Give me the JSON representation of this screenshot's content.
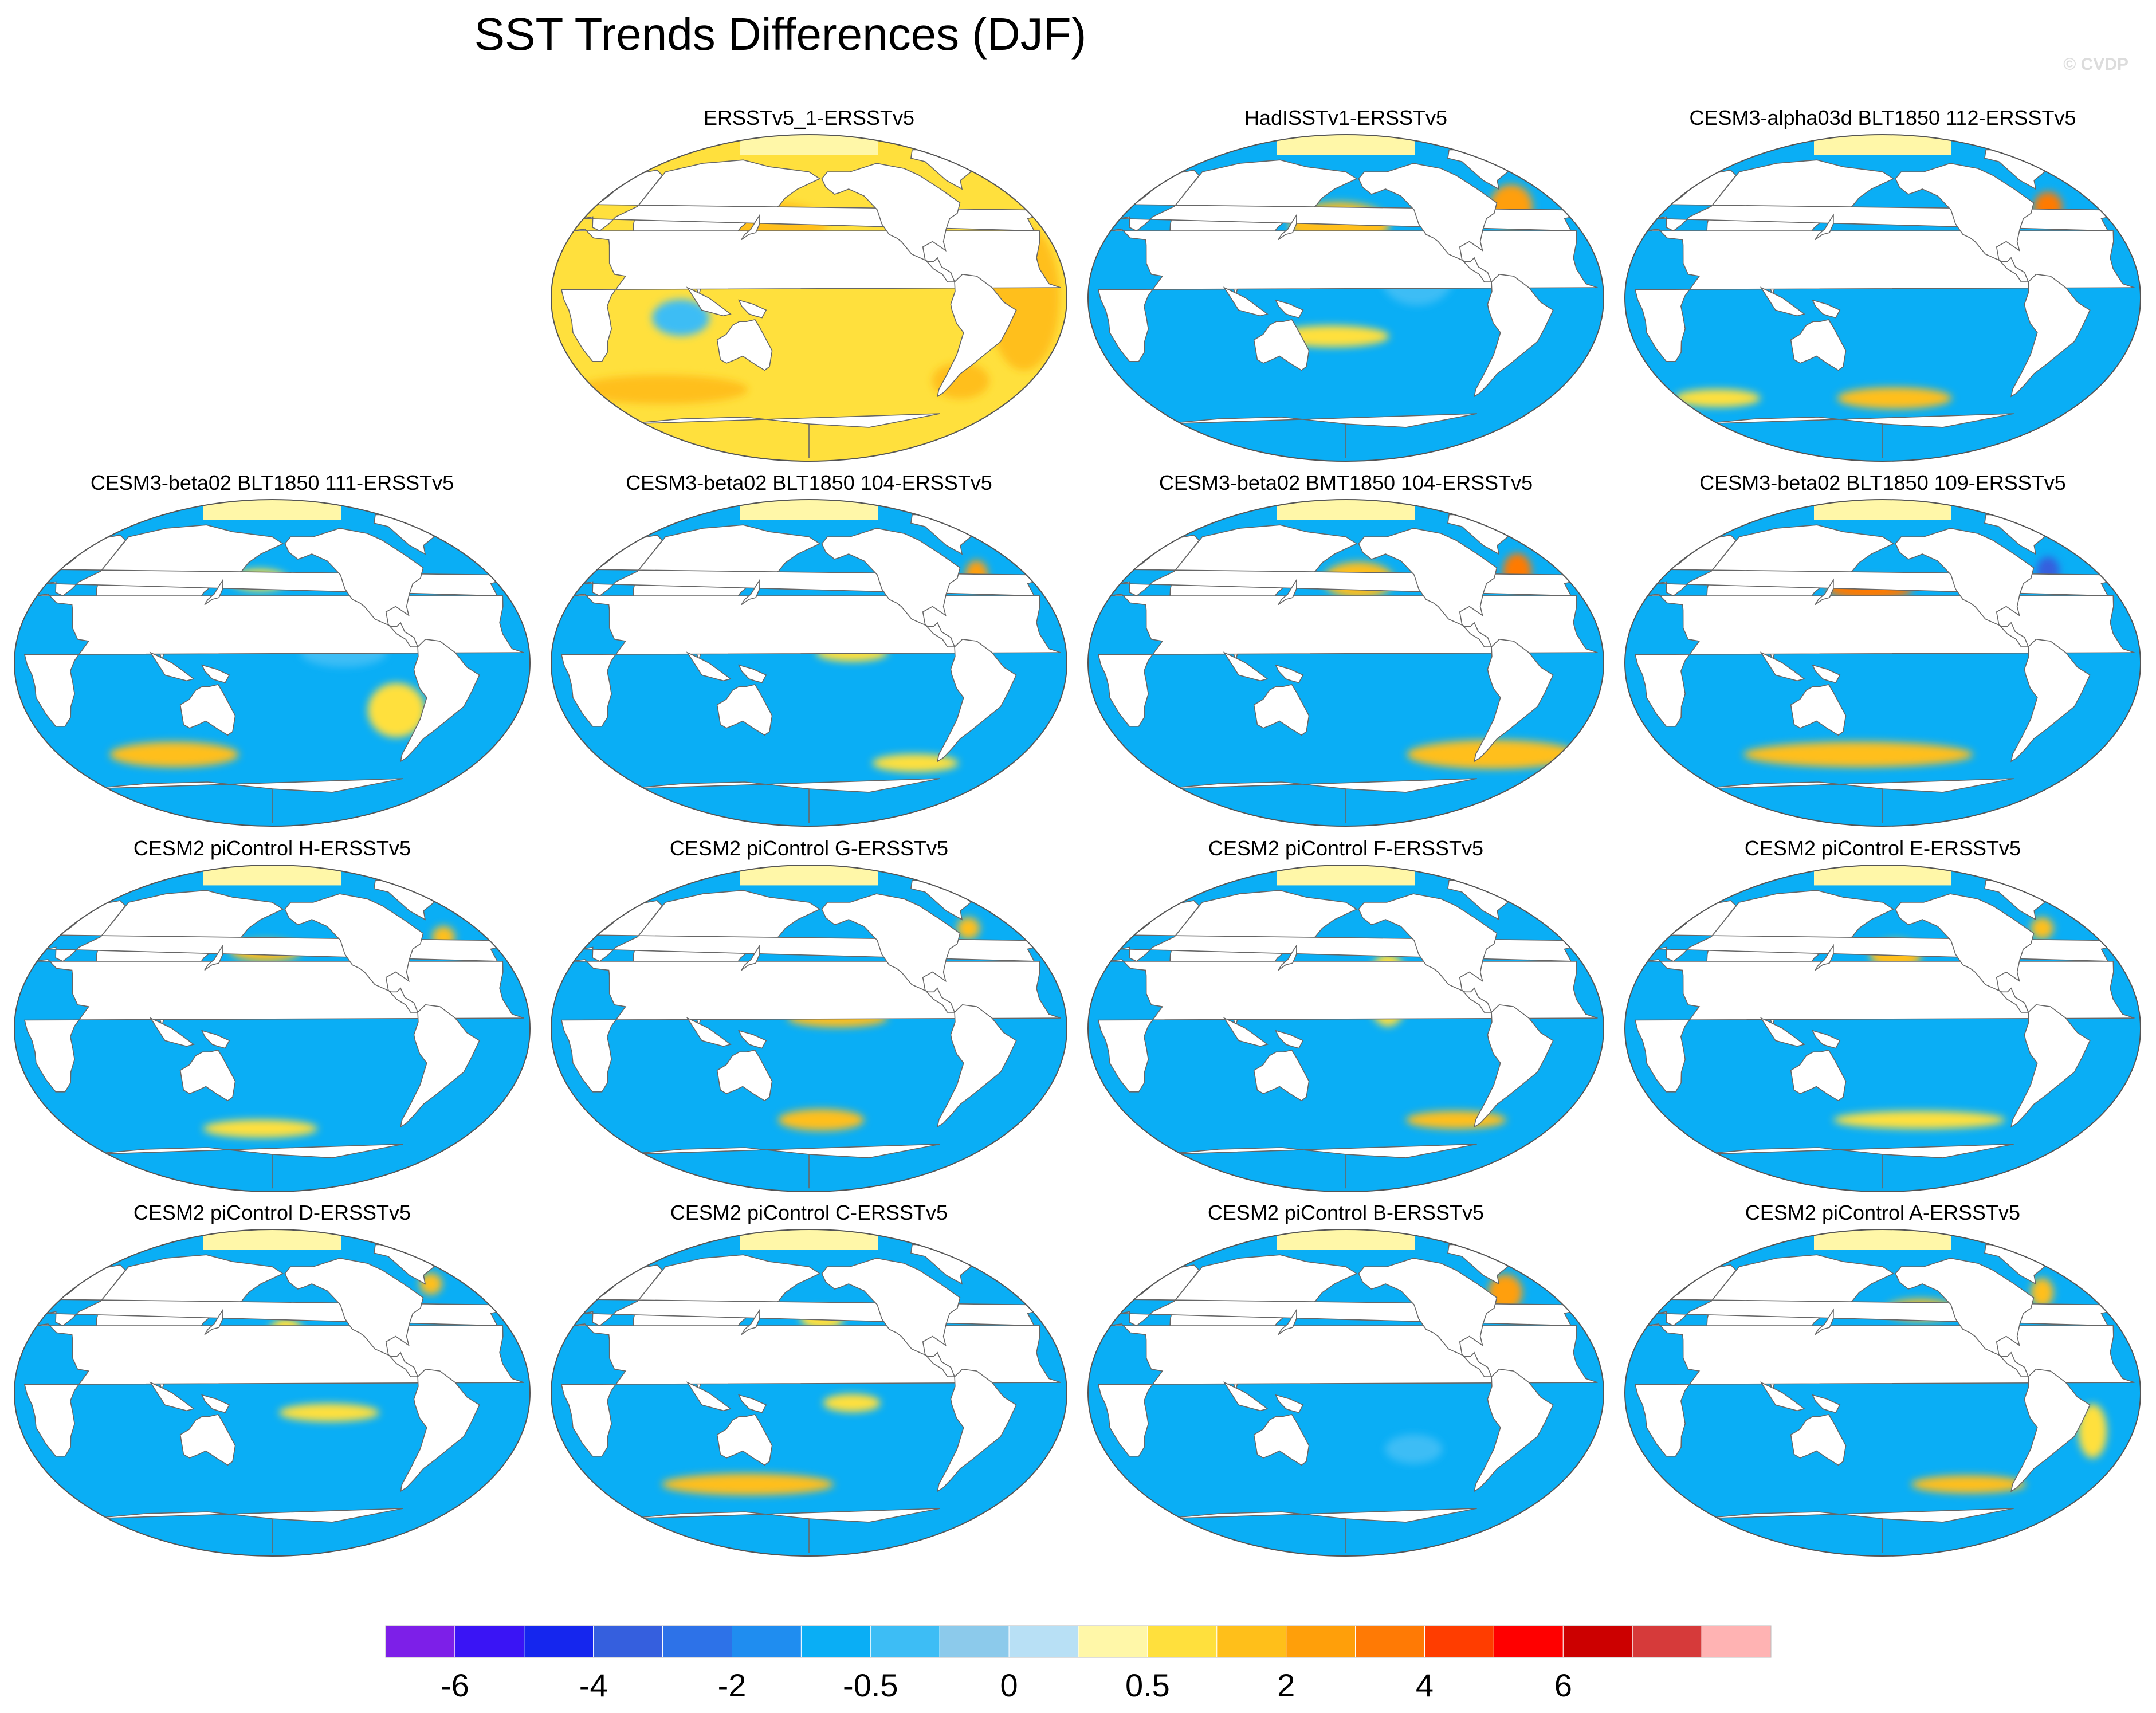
{
  "title": "SST Trends Differences (DJF)",
  "watermark": "© CVDP",
  "colors": {
    "ocean_base": "#1ab2f5",
    "land": "#ffffff",
    "coast": "#666666",
    "sea_ice": "#fff7a8"
  },
  "chart_data": {
    "type": "heatmap",
    "projection": "Robinson (Pacific-centered)",
    "variable": "SST trend difference",
    "season": "DJF",
    "panels": [
      {
        "label": "ERSSTv5_1-ERSSTv5",
        "dominant_level": "0.5",
        "blobs": [
          {
            "lon": 150,
            "lat": 40,
            "rx": 40,
            "ry": 12,
            "level": "1"
          },
          {
            "lon": -30,
            "lat": 0,
            "rx": 25,
            "ry": 40,
            "level": "1"
          },
          {
            "lon": 60,
            "lat": -50,
            "rx": 60,
            "ry": 8,
            "level": "1"
          },
          {
            "lon": 90,
            "lat": -10,
            "rx": 20,
            "ry": 10,
            "level": "-0.5"
          },
          {
            "lon": -60,
            "lat": -45,
            "rx": 20,
            "ry": 10,
            "level": "1"
          }
        ]
      },
      {
        "label": "HadISSTv1-ERSSTv5",
        "dominant_level": "-1",
        "blobs": [
          {
            "lon": 175,
            "lat": 40,
            "rx": 35,
            "ry": 12,
            "level": "1"
          },
          {
            "lon": -45,
            "lat": 50,
            "rx": 15,
            "ry": 12,
            "level": "2"
          },
          {
            "lon": 170,
            "lat": -20,
            "rx": 40,
            "ry": 6,
            "level": "0.5"
          },
          {
            "lon": -130,
            "lat": 10,
            "rx": 25,
            "ry": 15,
            "level": "-0.5"
          }
        ]
      },
      {
        "label": "CESM3-alpha03d BLT1850 112-ERSSTv5",
        "dominant_level": "-1",
        "blobs": [
          {
            "lon": -45,
            "lat": 50,
            "rx": 10,
            "ry": 8,
            "level": "3"
          },
          {
            "lon": -170,
            "lat": -55,
            "rx": 40,
            "ry": 6,
            "level": "1"
          },
          {
            "lon": 40,
            "lat": -55,
            "rx": 30,
            "ry": 5,
            "level": "0.5"
          }
        ]
      },
      {
        "label": "CESM3-beta02 BLT1850 111-ERSSTv5",
        "dominant_level": "-1",
        "blobs": [
          {
            "lon": 170,
            "lat": 45,
            "rx": 20,
            "ry": 6,
            "level": "0.5"
          },
          {
            "lon": -90,
            "lat": -25,
            "rx": 20,
            "ry": 15,
            "level": "0.5"
          },
          {
            "lon": 100,
            "lat": -50,
            "rx": 45,
            "ry": 7,
            "level": "1"
          },
          {
            "lon": -130,
            "lat": 5,
            "rx": 30,
            "ry": 8,
            "level": "-0.5"
          }
        ]
      },
      {
        "label": "CESM3-beta02 BLT1850 104-ERSSTv5",
        "dominant_level": "-1",
        "blobs": [
          {
            "lon": -45,
            "lat": 48,
            "rx": 8,
            "ry": 8,
            "level": "2"
          },
          {
            "lon": -150,
            "lat": 5,
            "rx": 25,
            "ry": 5,
            "level": "0.5"
          },
          {
            "lon": -90,
            "lat": -55,
            "rx": 30,
            "ry": 5,
            "level": "0.5"
          }
        ]
      },
      {
        "label": "CESM3-beta02 BMT1850 104-ERSSTv5",
        "dominant_level": "-1",
        "blobs": [
          {
            "lon": -170,
            "lat": 45,
            "rx": 25,
            "ry": 10,
            "level": "1"
          },
          {
            "lon": -40,
            "lat": 50,
            "rx": 10,
            "ry": 10,
            "level": "3"
          },
          {
            "lon": -60,
            "lat": -50,
            "rx": 60,
            "ry": 8,
            "level": "1"
          }
        ]
      },
      {
        "label": "CESM3-beta02 BLT1850 109-ERSSTv5",
        "dominant_level": "-1",
        "blobs": [
          {
            "lon": 170,
            "lat": 40,
            "rx": 30,
            "ry": 6,
            "level": "3"
          },
          {
            "lon": -45,
            "lat": 50,
            "rx": 8,
            "ry": 8,
            "level": "-4"
          },
          {
            "lon": 160,
            "lat": -50,
            "rx": 80,
            "ry": 7,
            "level": "1"
          }
        ]
      },
      {
        "label": "CESM2 piControl H-ERSSTv5",
        "dominant_level": "-1",
        "blobs": [
          {
            "lon": 175,
            "lat": 42,
            "rx": 25,
            "ry": 6,
            "level": "1"
          },
          {
            "lon": -40,
            "lat": 50,
            "rx": 8,
            "ry": 6,
            "level": "1"
          },
          {
            "lon": 170,
            "lat": -55,
            "rx": 40,
            "ry": 5,
            "level": "0.5"
          }
        ]
      },
      {
        "label": "CESM2 piControl G-ERSSTv5",
        "dominant_level": "-1",
        "blobs": [
          {
            "lon": -160,
            "lat": 5,
            "rx": 35,
            "ry": 5,
            "level": "1"
          },
          {
            "lon": -170,
            "lat": -50,
            "rx": 30,
            "ry": 6,
            "level": "1"
          },
          {
            "lon": -45,
            "lat": 55,
            "rx": 8,
            "ry": 6,
            "level": "1"
          }
        ]
      },
      {
        "label": "CESM2 piControl F-ERSSTv5",
        "dominant_level": "-1",
        "blobs": [
          {
            "lon": -150,
            "lat": 20,
            "rx": 15,
            "ry": 20,
            "level": "0.5"
          },
          {
            "lon": -90,
            "lat": -50,
            "rx": 35,
            "ry": 5,
            "level": "1"
          }
        ]
      },
      {
        "label": "CESM2 piControl E-ERSSTv5",
        "dominant_level": "-1",
        "blobs": [
          {
            "lon": -170,
            "lat": 40,
            "rx": 18,
            "ry": 8,
            "level": "1"
          },
          {
            "lon": -45,
            "lat": 55,
            "rx": 8,
            "ry": 6,
            "level": "1"
          },
          {
            "lon": -150,
            "lat": -50,
            "rx": 60,
            "ry": 5,
            "level": "0.5"
          }
        ]
      },
      {
        "label": "CESM2 piControl D-ERSSTv5",
        "dominant_level": "-1",
        "blobs": [
          {
            "lon": -170,
            "lat": 25,
            "rx": 15,
            "ry": 15,
            "level": "0.5"
          },
          {
            "lon": -140,
            "lat": -10,
            "rx": 35,
            "ry": 5,
            "level": "0.5"
          },
          {
            "lon": -40,
            "lat": 60,
            "rx": 8,
            "ry": 6,
            "level": "1"
          }
        ]
      },
      {
        "label": "CESM2 piControl C-ERSSTv5",
        "dominant_level": "-1",
        "blobs": [
          {
            "lon": -150,
            "lat": -5,
            "rx": 20,
            "ry": 5,
            "level": "0.5"
          },
          {
            "lon": 130,
            "lat": -50,
            "rx": 60,
            "ry": 6,
            "level": "1"
          },
          {
            "lon": -170,
            "lat": 40,
            "rx": 15,
            "ry": 6,
            "level": "0.5"
          }
        ]
      },
      {
        "label": "CESM2 piControl B-ERSSTv5",
        "dominant_level": "-1",
        "blobs": [
          {
            "lon": -45,
            "lat": 55,
            "rx": 12,
            "ry": 10,
            "level": "2"
          },
          {
            "lon": -130,
            "lat": -30,
            "rx": 20,
            "ry": 8,
            "level": "-0.5"
          }
        ]
      },
      {
        "label": "CESM2 piControl A-ERSSTv5",
        "dominant_level": "-1",
        "blobs": [
          {
            "lon": -150,
            "lat": 45,
            "rx": 25,
            "ry": 6,
            "level": "1"
          },
          {
            "lon": -45,
            "lat": 55,
            "rx": 8,
            "ry": 8,
            "level": "1"
          },
          {
            "lon": -30,
            "lat": -20,
            "rx": 10,
            "ry": 15,
            "level": "0.5"
          },
          {
            "lon": -110,
            "lat": -50,
            "rx": 40,
            "ry": 5,
            "level": "1"
          }
        ]
      }
    ],
    "colorbar": {
      "levels": [
        "-7",
        "-6",
        "-5",
        "-4",
        "-3",
        "-2",
        "-1",
        "-0.5",
        "-0.25",
        "0",
        "0.25",
        "0.5",
        "1",
        "2",
        "3",
        "4",
        "5",
        "6",
        "7",
        "8"
      ],
      "colors": [
        "#7d1fe8",
        "#3a14f5",
        "#1526ee",
        "#355fde",
        "#2d72e8",
        "#1f8df0",
        "#0aaef5",
        "#3dbdf5",
        "#8ccaeb",
        "#b8e0f5",
        "#fff7a8",
        "#ffe03d",
        "#ffbf1a",
        "#ff9f0a",
        "#ff7a05",
        "#ff3d00",
        "#ff0000",
        "#cc0000",
        "#d63a3a",
        "#ffb3b3"
      ],
      "tick_labels": [
        "-6",
        "-4",
        "-2",
        "-0.5",
        "0",
        "0.5",
        "2",
        "4",
        "6"
      ]
    }
  }
}
